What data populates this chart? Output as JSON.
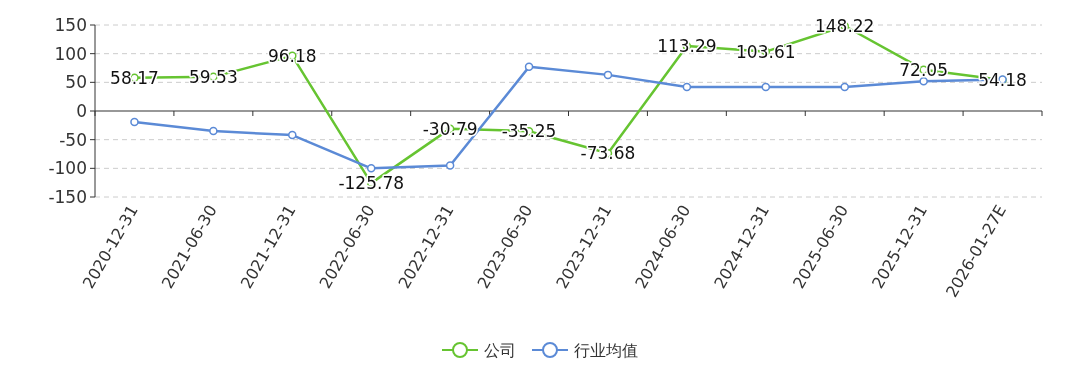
{
  "chart_data": {
    "type": "line",
    "categories": [
      "2020-12-31",
      "2021-06-30",
      "2021-12-31",
      "2022-06-30",
      "2022-12-31",
      "2023-06-30",
      "2023-12-31",
      "2024-06-30",
      "2024-12-31",
      "2025-06-30",
      "2025-12-31",
      "2026-01-27E"
    ],
    "series": [
      {
        "name": "公司",
        "color": "#66c431",
        "values": [
          58.17,
          59.53,
          96.18,
          -125.78,
          -30.79,
          -35.25,
          -73.68,
          113.29,
          103.61,
          148.22,
          72.05,
          54.18
        ],
        "value_labels": [
          "58.17",
          "59.53",
          "96.18",
          "-125.78",
          "-30.79",
          "-35.25",
          "-73.68",
          "113.29",
          "103.61",
          "148.22",
          "72.05",
          "54.18"
        ]
      },
      {
        "name": "行业均值",
        "color": "#5b8ad6",
        "values": [
          -19,
          -35,
          -42,
          -100,
          -95,
          77,
          63,
          42,
          42,
          42,
          52,
          55
        ]
      }
    ],
    "ylim": [
      -150,
      150
    ],
    "yticks": [
      -150,
      -100,
      -50,
      0,
      50,
      100,
      150
    ],
    "grid": "y",
    "legend": "bottom",
    "marker": "circle"
  }
}
